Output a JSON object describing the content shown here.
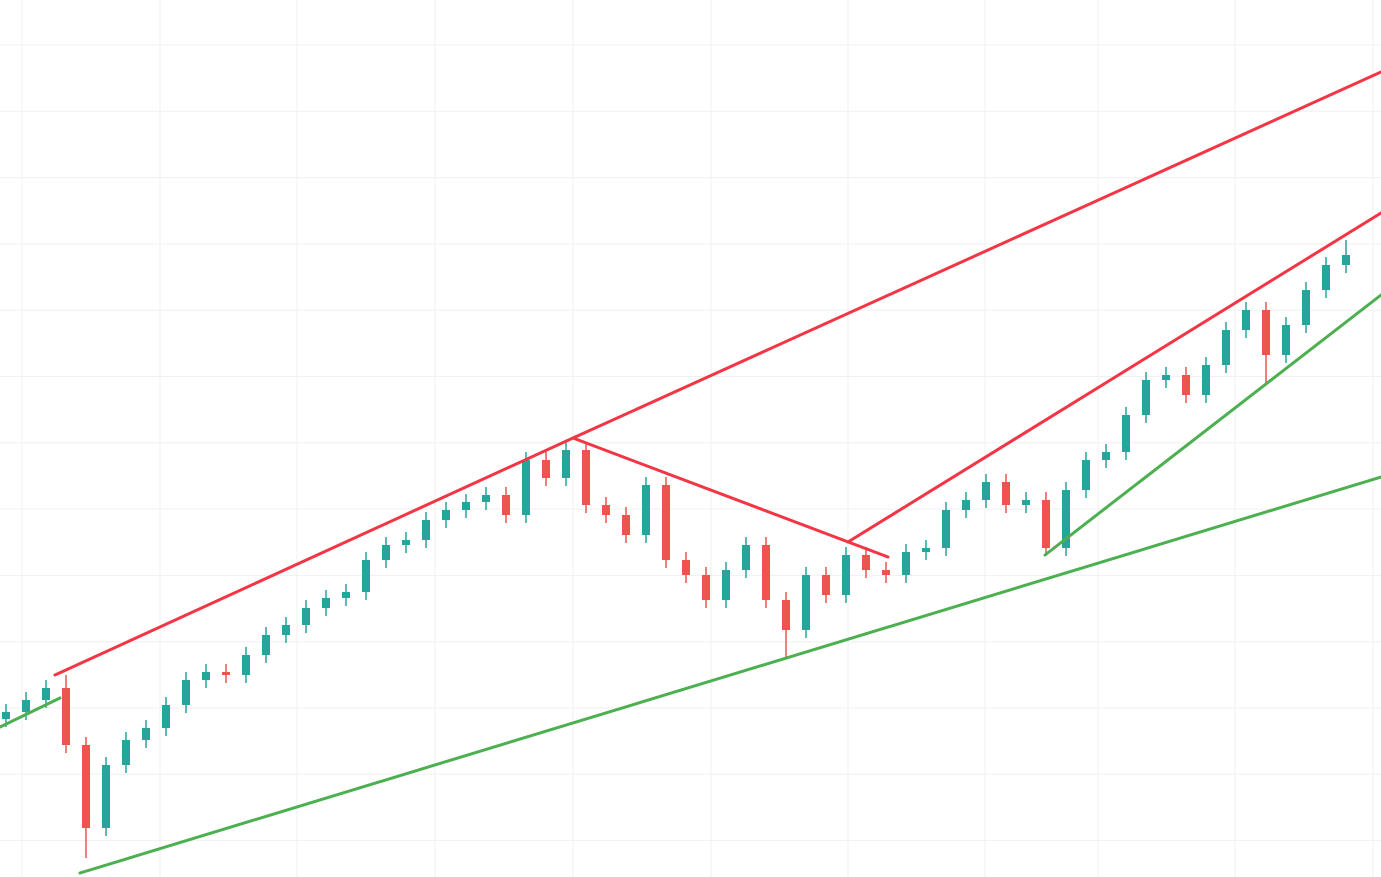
{
  "chart_data": {
    "type": "candlestick",
    "up_color": "#26a69a",
    "down_color": "#ef5350",
    "xlim": [
      -0.3,
      68.75
    ],
    "ylim": [
      0,
      877
    ],
    "open": [
      158,
      165,
      177,
      189,
      132,
      49,
      112,
      137,
      149,
      172,
      197,
      205,
      202,
      222,
      242,
      252,
      269,
      279,
      285,
      317,
      332,
      337,
      357,
      367,
      375,
      382,
      362,
      417,
      399,
      427,
      372,
      362,
      342,
      392,
      317,
      302,
      277,
      307,
      332,
      277,
      247,
      302,
      282,
      322,
      307,
      302,
      325,
      329,
      367,
      377,
      395,
      372,
      377,
      329,
      387,
      417,
      425,
      462,
      497,
      502,
      482,
      512,
      547,
      567,
      522,
      552,
      587,
      612
    ],
    "high": [
      173,
      185,
      197,
      202,
      140,
      120,
      145,
      157,
      180,
      205,
      213,
      213,
      230,
      250,
      260,
      277,
      287,
      293,
      325,
      340,
      345,
      365,
      375,
      383,
      390,
      390,
      425,
      425,
      435,
      435,
      380,
      370,
      400,
      400,
      325,
      310,
      315,
      340,
      340,
      285,
      310,
      310,
      330,
      330,
      315,
      333,
      337,
      375,
      385,
      403,
      403,
      385,
      385,
      395,
      425,
      433,
      470,
      505,
      510,
      510,
      520,
      555,
      575,
      575,
      560,
      595,
      620,
      637
    ],
    "low": [
      150,
      157,
      169,
      124,
      19,
      41,
      104,
      129,
      141,
      164,
      189,
      194,
      194,
      214,
      234,
      244,
      261,
      271,
      277,
      309,
      324,
      329,
      349,
      359,
      367,
      354,
      354,
      391,
      391,
      364,
      354,
      334,
      334,
      309,
      294,
      269,
      269,
      299,
      269,
      219,
      239,
      274,
      274,
      299,
      294,
      294,
      317,
      321,
      359,
      369,
      364,
      364,
      321,
      321,
      379,
      409,
      417,
      454,
      489,
      474,
      474,
      504,
      539,
      494,
      514,
      544,
      579,
      604
    ],
    "close": [
      165,
      177,
      189,
      132,
      49,
      112,
      137,
      149,
      172,
      197,
      205,
      202,
      222,
      242,
      252,
      269,
      279,
      285,
      317,
      332,
      337,
      357,
      367,
      375,
      382,
      362,
      417,
      399,
      427,
      372,
      362,
      342,
      392,
      317,
      302,
      277,
      307,
      332,
      277,
      247,
      302,
      282,
      322,
      307,
      302,
      325,
      329,
      367,
      377,
      395,
      372,
      377,
      329,
      387,
      417,
      425,
      462,
      497,
      502,
      482,
      512,
      547,
      567,
      522,
      552,
      587,
      612,
      622
    ],
    "trend_lines": [
      {
        "color": "#f23645",
        "x": [
          2.45,
          28.35
        ],
        "y": [
          202,
          439
        ]
      },
      {
        "color": "#f23645",
        "x": [
          28.35,
          68.75
        ],
        "y": [
          439,
          805
        ]
      },
      {
        "color": "#f23645",
        "x": [
          28.35,
          44.1
        ],
        "y": [
          439,
          320
        ]
      },
      {
        "color": "#f23645",
        "x": [
          42.1,
          68.75
        ],
        "y": [
          335,
          664
        ]
      },
      {
        "color": "#4caf50",
        "x": [
          -0.3,
          2.7
        ],
        "y": [
          150,
          179
        ]
      },
      {
        "color": "#4caf50",
        "x": [
          3.7,
          68.75
        ],
        "y": [
          4,
          400
        ]
      },
      {
        "color": "#4caf50",
        "x": [
          51.95,
          68.75
        ],
        "y": [
          322,
          582
        ]
      }
    ]
  }
}
